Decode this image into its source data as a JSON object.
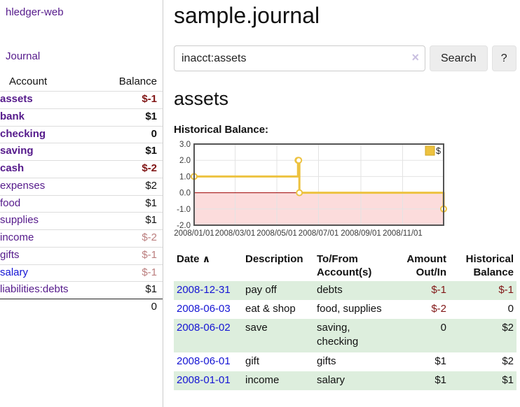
{
  "app": {
    "brand": "hledger-web",
    "nav_journal": "Journal"
  },
  "icons": {
    "clear_search": "×",
    "sort_ascending": "∧"
  },
  "colors": {
    "accent_purple": "#551a8b",
    "link_blue": "#1414d4",
    "negative": "#801515",
    "negative_dim": "#bb7e7e",
    "stripe_green": "#ddeedd",
    "chart_gold": "#edc240",
    "chart_negative_bg": "#fcdcdc",
    "chart_zero_line": "#a00000"
  },
  "sidebar": {
    "columns": {
      "account": "Account",
      "balance": "Balance"
    },
    "accounts": [
      {
        "name": "assets",
        "indent": 1,
        "bold": true,
        "balance": "$-1",
        "balance_class": "neg"
      },
      {
        "name": "bank",
        "indent": 2,
        "bold": true,
        "balance": "$1",
        "balance_class": "pos"
      },
      {
        "name": "checking",
        "indent": 3,
        "bold": true,
        "balance": "0",
        "balance_class": "pos"
      },
      {
        "name": "saving",
        "indent": 3,
        "bold": true,
        "balance": "$1",
        "balance_class": "pos"
      },
      {
        "name": "cash",
        "indent": 2,
        "bold": true,
        "balance": "$-2",
        "balance_class": "neg"
      },
      {
        "name": "expenses",
        "indent": 1,
        "bold": false,
        "balance": "$2",
        "balance_class": "pos"
      },
      {
        "name": "food",
        "indent": 2,
        "bold": false,
        "balance": "$1",
        "balance_class": "pos"
      },
      {
        "name": "supplies",
        "indent": 2,
        "bold": false,
        "balance": "$1",
        "balance_class": "pos"
      },
      {
        "name": "income",
        "indent": 1,
        "bold": false,
        "balance": "$-2",
        "balance_class": "negdim"
      },
      {
        "name": "gifts",
        "indent": 2,
        "bold": false,
        "balance": "$-1",
        "balance_class": "negdim"
      },
      {
        "name": "salary",
        "indent": 2,
        "bold": false,
        "link_blue": true,
        "balance": "$-1",
        "balance_class": "negdim"
      },
      {
        "name": "liabilities:debts",
        "indent": 1,
        "bold": false,
        "balance": "$1",
        "balance_class": "pos"
      }
    ],
    "total": "0"
  },
  "header": {
    "title": "sample.journal"
  },
  "search": {
    "value": "inacct:assets",
    "button_label": "Search",
    "help_label": "?"
  },
  "account_page": {
    "heading": "assets",
    "chart_title": "Historical Balance:"
  },
  "chart_data": {
    "type": "line",
    "step": true,
    "title": "Historical Balance:",
    "series": [
      {
        "name": "$",
        "color": "#edc240",
        "points": [
          [
            "2008-01-01",
            1
          ],
          [
            "2008-06-01",
            2
          ],
          [
            "2008-06-02",
            2
          ],
          [
            "2008-06-03",
            0
          ],
          [
            "2008-12-31",
            -1
          ]
        ]
      }
    ],
    "x_ticks": [
      "2008/01/01",
      "2008/03/01",
      "2008/05/01",
      "2008/07/01",
      "2008/09/01",
      "2008/11/01"
    ],
    "y_ticks": [
      -2.0,
      -1.0,
      0.0,
      1.0,
      2.0,
      3.0
    ],
    "xlim": [
      "2008-01-01",
      "2008-12-31"
    ],
    "ylim": [
      -2,
      3
    ],
    "grid": true,
    "legend": {
      "label": "$",
      "position": "top-right"
    },
    "negative_region_fill": "#fcdcdc",
    "zero_line_color": "#a00000"
  },
  "register": {
    "columns": [
      "Date",
      "Description",
      "To/From Account(s)",
      "Amount Out/In",
      "Historical Balance"
    ],
    "sorted_by": "Date ascending",
    "rows": [
      {
        "date": "2008-12-31",
        "description": "pay off",
        "accounts": "debts",
        "amount": "$-1",
        "amount_neg": true,
        "balance": "$-1",
        "balance_neg": true
      },
      {
        "date": "2008-06-03",
        "description": "eat & shop",
        "accounts": "food, supplies",
        "amount": "$-2",
        "amount_neg": true,
        "balance": "0",
        "balance_neg": false
      },
      {
        "date": "2008-06-02",
        "description": "save",
        "accounts": "saving, checking",
        "amount": "0",
        "amount_neg": false,
        "balance": "$2",
        "balance_neg": false
      },
      {
        "date": "2008-06-01",
        "description": "gift",
        "accounts": "gifts",
        "amount": "$1",
        "amount_neg": false,
        "balance": "$2",
        "balance_neg": false
      },
      {
        "date": "2008-01-01",
        "description": "income",
        "accounts": "salary",
        "amount": "$1",
        "amount_neg": false,
        "balance": "$1",
        "balance_neg": false
      }
    ]
  }
}
